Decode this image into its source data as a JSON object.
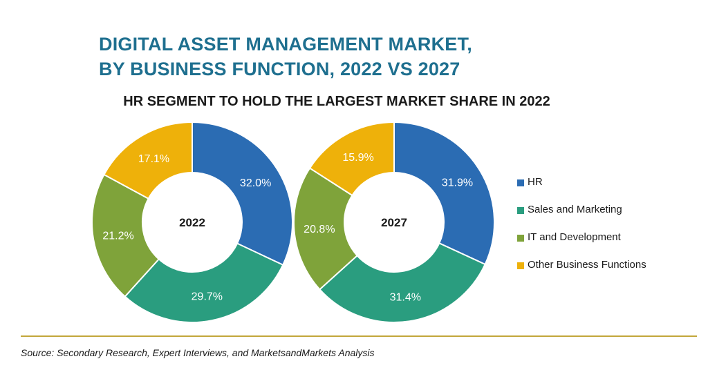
{
  "title_line1": "DIGITAL ASSET MANAGEMENT MARKET,",
  "title_line2": "BY BUSINESS FUNCTION, 2022 VS 2027",
  "subtitle": "HR SEGMENT TO HOLD THE LARGEST MARKET SHARE IN 2022",
  "source": "Source: Secondary Research, Expert Interviews, and MarketsandMarkets Analysis",
  "legend": [
    {
      "label": "HR",
      "color": "#2b6cb3"
    },
    {
      "label": "Sales and Marketing",
      "color": "#2a9d7f"
    },
    {
      "label": "IT and Development",
      "color": "#7fa33a"
    },
    {
      "label": "Other Business Functions",
      "color": "#eeb10a"
    }
  ],
  "chart_data": [
    {
      "type": "pie",
      "center_label": "2022",
      "categories": [
        "HR",
        "Sales and Marketing",
        "IT and Development",
        "Other Business Functions"
      ],
      "values": [
        32.0,
        29.7,
        21.2,
        17.1
      ],
      "labels": [
        "32.0%",
        "29.7%",
        "21.2%",
        "17.1%"
      ],
      "colors": [
        "#2b6cb3",
        "#2a9d7f",
        "#7fa33a",
        "#eeb10a"
      ]
    },
    {
      "type": "pie",
      "center_label": "2027",
      "categories": [
        "HR",
        "Sales and Marketing",
        "IT and Development",
        "Other Business Functions"
      ],
      "values": [
        31.9,
        31.4,
        20.8,
        15.9
      ],
      "labels": [
        "31.9%",
        "31.4%",
        "20.8%",
        "15.9%"
      ],
      "colors": [
        "#2b6cb3",
        "#2a9d7f",
        "#7fa33a",
        "#eeb10a"
      ]
    }
  ]
}
